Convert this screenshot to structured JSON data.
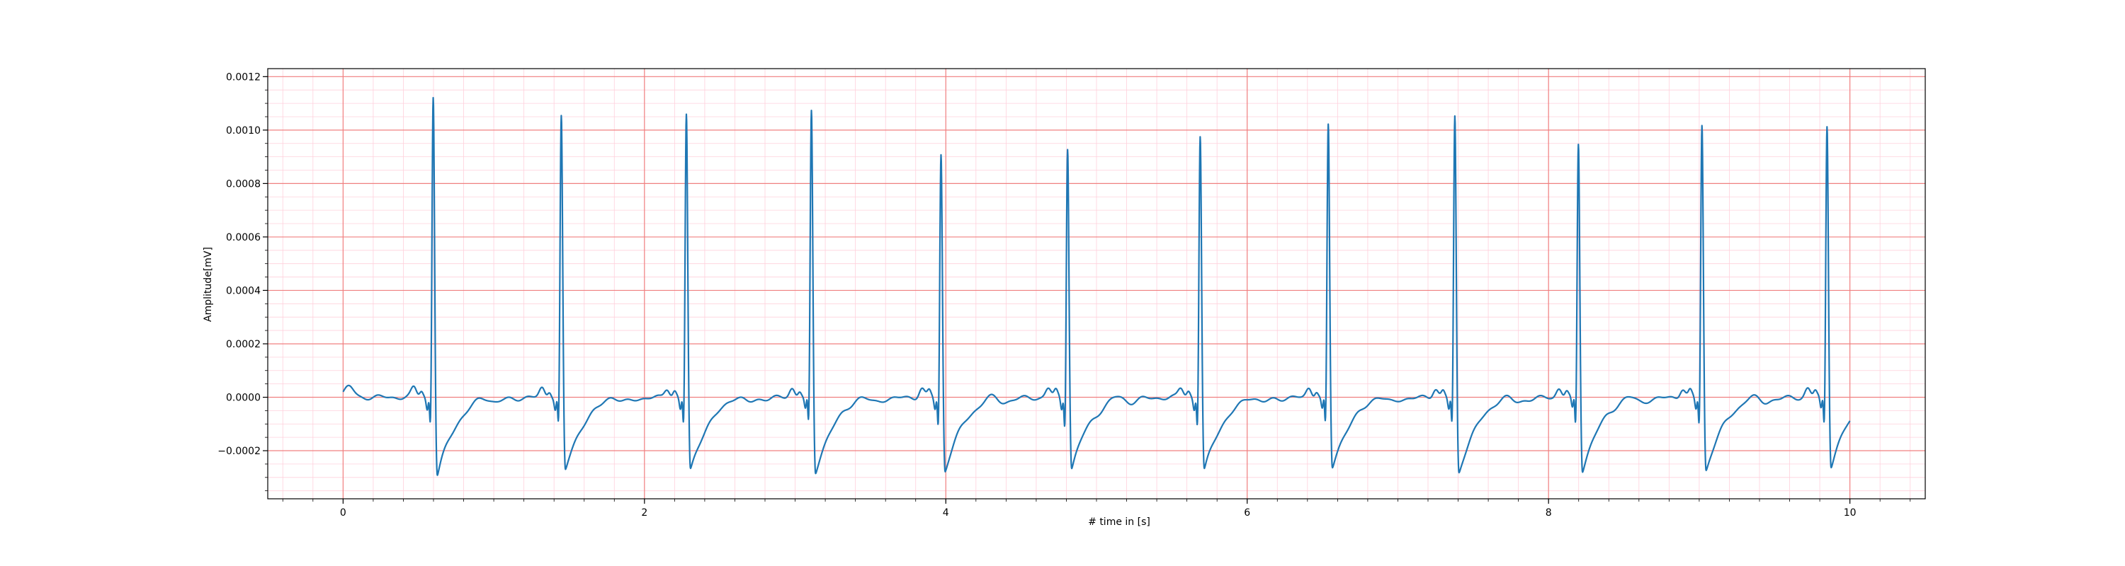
{
  "chart_data": {
    "type": "line",
    "title": "",
    "xlabel": "# time in [s]",
    "ylabel": "Amplitude[mV]",
    "xlim": [
      -0.5,
      10.5
    ],
    "ylim": [
      -0.00038,
      0.00123
    ],
    "x_ticks": [
      0,
      2,
      4,
      6,
      8,
      10
    ],
    "x_tick_labels": [
      "0",
      "2",
      "4",
      "6",
      "8",
      "10"
    ],
    "y_ticks": [
      -0.0002,
      0.0,
      0.0002,
      0.0004,
      0.0006,
      0.0008,
      0.001,
      0.0012
    ],
    "y_tick_labels": [
      "−0.0002",
      "0.0000",
      "0.0002",
      "0.0004",
      "0.0006",
      "0.0008",
      "0.0010",
      "0.0012"
    ],
    "grid": {
      "major": true,
      "minor": true,
      "major_color": "#f08080",
      "minor_color": "#ffd0dc"
    },
    "series": [
      {
        "color": "#1f77b4",
        "x_range": [
          0,
          10
        ],
        "beats": [
          {
            "r_time": 0.59,
            "r_peak": 0.00115,
            "s_min": -0.0003
          },
          {
            "r_time": 1.44,
            "r_peak": 0.00107,
            "s_min": -0.00028
          },
          {
            "r_time": 2.27,
            "r_peak": 0.00108,
            "s_min": -0.00028
          },
          {
            "r_time": 3.1,
            "r_peak": 0.00109,
            "s_min": -0.00029
          },
          {
            "r_time": 3.96,
            "r_peak": 0.00093,
            "s_min": -0.00028
          },
          {
            "r_time": 4.8,
            "r_peak": 0.00096,
            "s_min": -0.00027
          },
          {
            "r_time": 5.68,
            "r_peak": 0.001,
            "s_min": -0.00028
          },
          {
            "r_time": 6.53,
            "r_peak": 0.00104,
            "s_min": -0.00027
          },
          {
            "r_time": 7.37,
            "r_peak": 0.00107,
            "s_min": -0.00029
          },
          {
            "r_time": 8.19,
            "r_peak": 0.00097,
            "s_min": -0.00028
          },
          {
            "r_time": 9.01,
            "r_peak": 0.00104,
            "s_min": -0.00028
          },
          {
            "r_time": 9.84,
            "r_peak": 0.00104,
            "s_min": -0.00026
          }
        ]
      }
    ]
  }
}
